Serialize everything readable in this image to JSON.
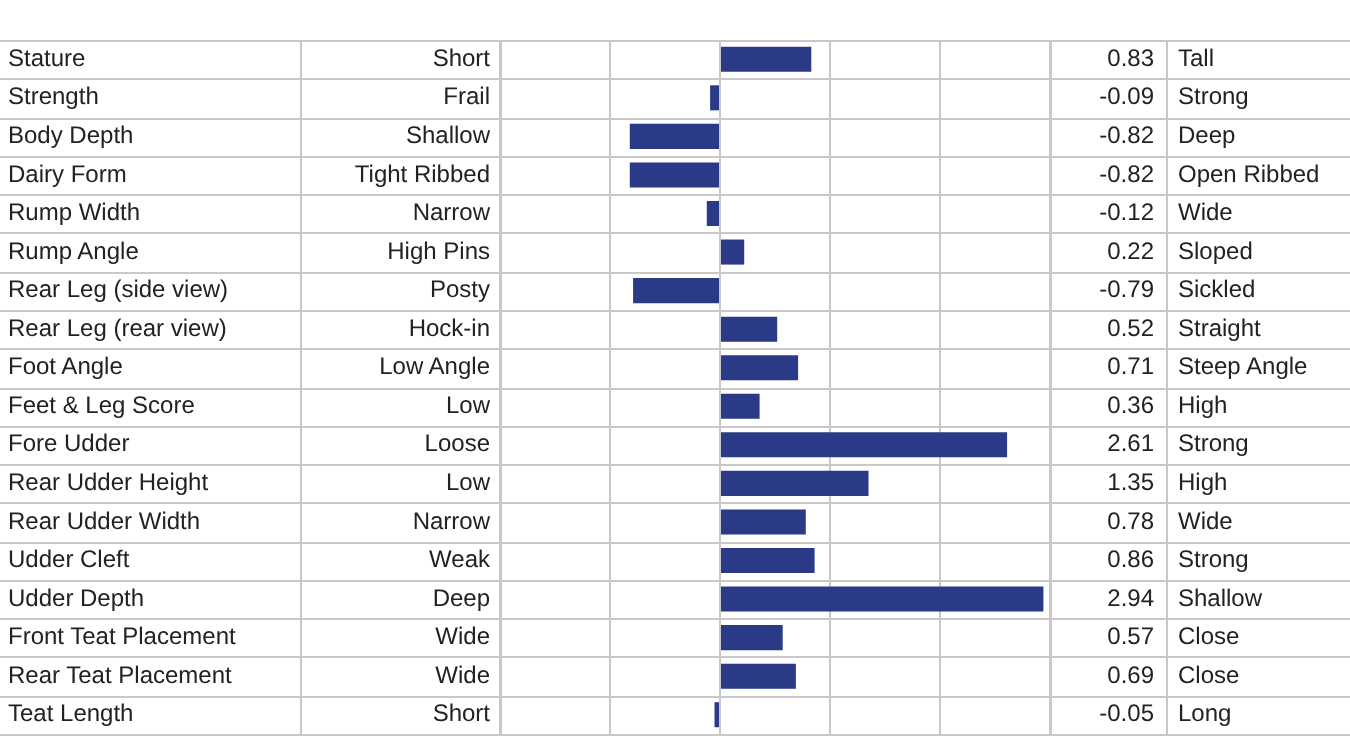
{
  "chart_data": {
    "type": "bar",
    "orientation": "horizontal",
    "categories": [
      "Stature",
      "Strength",
      "Body Depth",
      "Dairy Form",
      "Rump Width",
      "Rump Angle",
      "Rear Leg (side view)",
      "Rear Leg (rear view)",
      "Foot Angle",
      "Feet & Leg Score",
      "Fore Udder",
      "Rear Udder Height",
      "Rear Udder Width",
      "Udder Cleft",
      "Udder Depth",
      "Front Teat Placement",
      "Rear Teat Placement",
      "Teat Length"
    ],
    "values": [
      0.83,
      -0.09,
      -0.82,
      -0.82,
      -0.12,
      0.22,
      -0.79,
      0.52,
      0.71,
      0.36,
      2.61,
      1.35,
      0.78,
      0.86,
      2.94,
      0.57,
      0.69,
      -0.05
    ],
    "color": "#2b3a86",
    "annotations": [
      "Short",
      "Tall",
      "Frail",
      "Strong",
      "Shallow",
      "Deep",
      "Tight Ribbed",
      "Open Ribbed",
      "Narrow",
      "Wide",
      "High Pins",
      "Sloped",
      "Posty",
      "Sickled",
      "Hock-in",
      "Straight",
      "Low Angle",
      "Steep Angle",
      "Low",
      "High",
      "Loose",
      "Strong",
      "Low",
      "High",
      "Narrow",
      "Wide",
      "Weak",
      "Strong",
      "Deep",
      "Shallow",
      "Wide",
      "Close",
      "Wide",
      "Close",
      "Short",
      "Long"
    ],
    "xlim": [
      -2,
      3
    ],
    "xticks": [
      {
        "value": -2,
        "label": null
      },
      {
        "value": -1,
        "label": null
      },
      {
        "value": 0,
        "label": null
      },
      {
        "value": 1,
        "label": null
      },
      {
        "value": 2,
        "label": null
      },
      {
        "value": 3,
        "label": null
      }
    ],
    "data_labels": true,
    "grid": true,
    "tick_labels": "y"
  }
}
